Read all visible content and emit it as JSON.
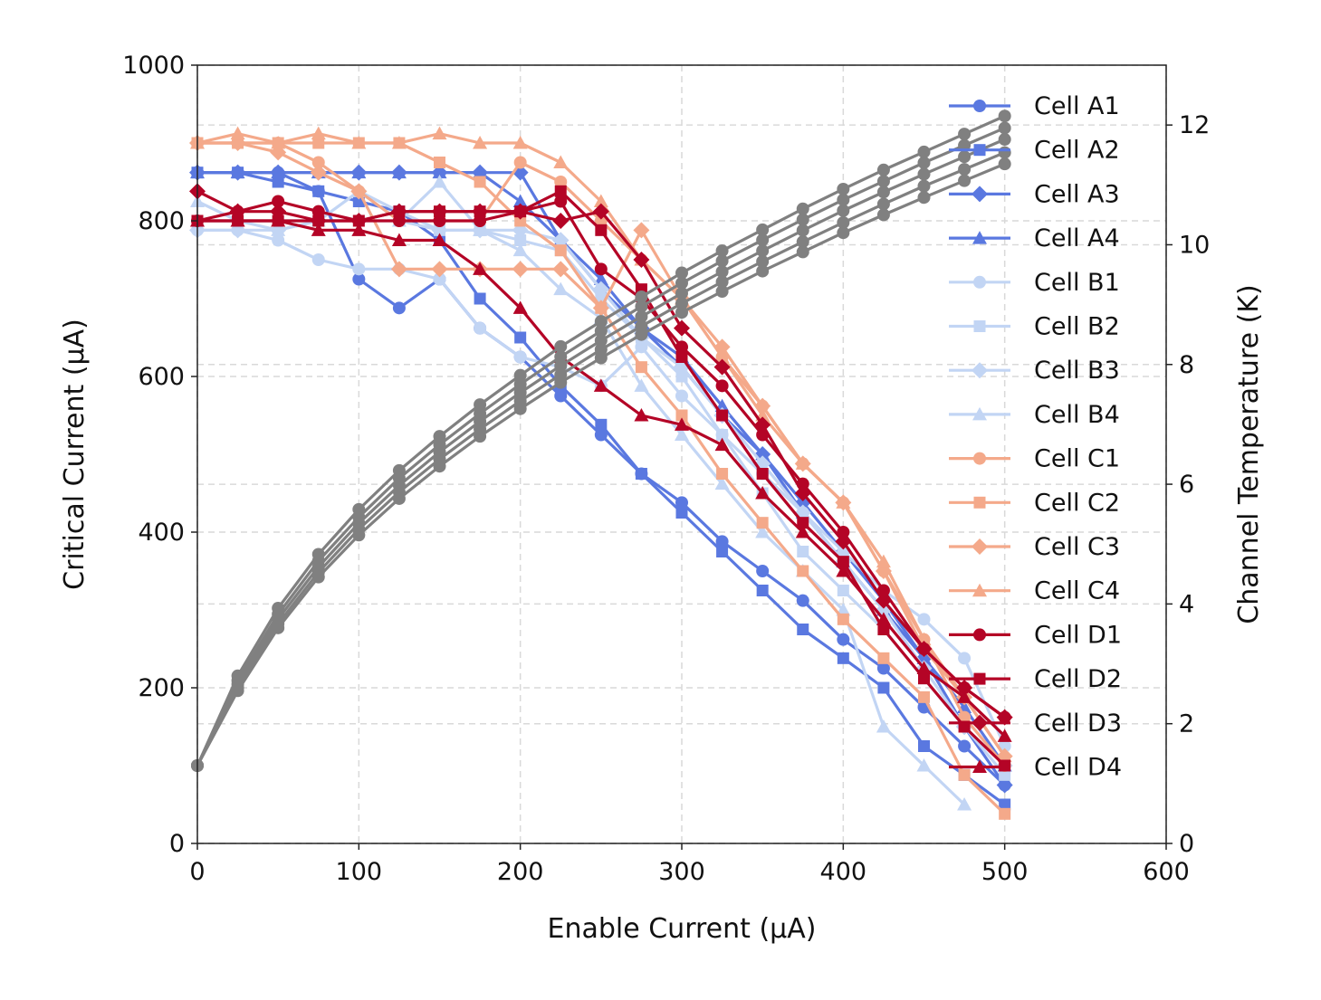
{
  "chart_data": {
    "type": "line",
    "xlabel": "Enable Current (μA)",
    "ylabel": "Critical Current (μA)",
    "y2label": "Channel Temperature (K)",
    "xlim": [
      0,
      600
    ],
    "ylim": [
      0,
      1000
    ],
    "y2lim": [
      0,
      13
    ],
    "xticks": [
      0,
      100,
      200,
      300,
      400,
      500,
      600
    ],
    "yticks": [
      0,
      200,
      400,
      600,
      800,
      1000
    ],
    "y2ticks": [
      0,
      2,
      4,
      6,
      8,
      10,
      12
    ],
    "grid": true,
    "legend_position": "right",
    "series": [
      {
        "name": "Cell A1",
        "color": "#5a78e0",
        "marker": "circle",
        "x": [
          0,
          25,
          50,
          75,
          100,
          125,
          150,
          175,
          200,
          225,
          250,
          275,
          300,
          325,
          350,
          375,
          400,
          425,
          450,
          475,
          500
        ],
        "y": [
          862,
          862,
          862,
          838,
          725,
          688,
          725,
          662,
          625,
          575,
          525,
          475,
          438,
          388,
          350,
          312,
          262,
          225,
          175,
          125,
          75
        ]
      },
      {
        "name": "Cell A2",
        "color": "#5a78e0",
        "marker": "square",
        "x": [
          0,
          25,
          50,
          75,
          100,
          125,
          150,
          175,
          200,
          225,
          250,
          275,
          300,
          325,
          350,
          375,
          400,
          425,
          450,
          475,
          500
        ],
        "y": [
          862,
          862,
          850,
          838,
          825,
          812,
          775,
          700,
          650,
          588,
          538,
          475,
          425,
          375,
          325,
          275,
          238,
          200,
          125,
          88,
          50
        ]
      },
      {
        "name": "Cell A3",
        "color": "#5a78e0",
        "marker": "diamond",
        "x": [
          0,
          25,
          50,
          75,
          100,
          125,
          150,
          175,
          200,
          225,
          250,
          275,
          300,
          325,
          350,
          375,
          400,
          425,
          450,
          475,
          500
        ],
        "y": [
          862,
          862,
          862,
          862,
          862,
          862,
          862,
          862,
          862,
          775,
          712,
          662,
          612,
          550,
          500,
          438,
          375,
          312,
          238,
          150,
          75
        ]
      },
      {
        "name": "Cell A4",
        "color": "#5a78e0",
        "marker": "triangle",
        "x": [
          0,
          25,
          50,
          75,
          100,
          125,
          150,
          175,
          200,
          225,
          250,
          275,
          300,
          325,
          350,
          375,
          400,
          425,
          450,
          475,
          500
        ],
        "y": [
          862,
          862,
          862,
          862,
          862,
          862,
          862,
          862,
          825,
          775,
          725,
          662,
          625,
          562,
          500,
          425,
          362,
          300,
          238,
          175,
          100
        ]
      },
      {
        "name": "Cell B1",
        "color": "#c2d5f4",
        "marker": "circle",
        "x": [
          0,
          25,
          50,
          75,
          100,
          125,
          150,
          175,
          200,
          225,
          250,
          275,
          300,
          325,
          350,
          375,
          400,
          425,
          450,
          475,
          500
        ],
        "y": [
          788,
          788,
          775,
          750,
          738,
          738,
          725,
          662,
          625,
          612,
          588,
          638,
          575,
          525,
          475,
          425,
          375,
          325,
          288,
          238,
          125
        ]
      },
      {
        "name": "Cell B2",
        "color": "#c2d5f4",
        "marker": "square",
        "x": [
          0,
          25,
          50,
          75,
          100,
          125,
          150,
          175,
          200,
          225,
          250,
          275,
          300,
          325,
          350,
          375,
          400,
          425,
          450,
          475,
          500
        ],
        "y": [
          800,
          800,
          800,
          800,
          800,
          800,
          788,
          788,
          775,
          762,
          700,
          650,
          600,
          525,
          450,
          375,
          325,
          275,
          212,
          150,
          88
        ]
      },
      {
        "name": "Cell B3",
        "color": "#c2d5f4",
        "marker": "diamond",
        "x": [
          0,
          25,
          50,
          75,
          100,
          125,
          150,
          175,
          200,
          225,
          250,
          275,
          300,
          325,
          350,
          375,
          400,
          425,
          450,
          475,
          500
        ],
        "y": [
          788,
          788,
          788,
          800,
          838,
          812,
          788,
          788,
          788,
          775,
          712,
          650,
          612,
          550,
          488,
          425,
          362,
          300,
          225,
          150,
          100
        ]
      },
      {
        "name": "Cell B4",
        "color": "#c2d5f4",
        "marker": "triangle",
        "x": [
          0,
          25,
          50,
          75,
          100,
          125,
          150,
          175,
          200,
          225,
          250,
          275,
          300,
          325,
          350,
          375,
          400,
          425,
          450,
          475,
          500
        ],
        "y": [
          825,
          800,
          788,
          800,
          838,
          800,
          850,
          788,
          762,
          712,
          675,
          588,
          525,
          462,
          400,
          350,
          300,
          150,
          100,
          50,
          null
        ]
      },
      {
        "name": "Cell C1",
        "color": "#f4a98a",
        "marker": "circle",
        "x": [
          0,
          25,
          50,
          75,
          100,
          125,
          150,
          175,
          200,
          225,
          250,
          275,
          300,
          325,
          350,
          375,
          400,
          425,
          450,
          475,
          500
        ],
        "y": [
          900,
          900,
          900,
          875,
          838,
          800,
          800,
          800,
          875,
          850,
          800,
          750,
          700,
          625,
          562,
          488,
          438,
          350,
          262,
          162,
          100
        ]
      },
      {
        "name": "Cell C2",
        "color": "#f4a98a",
        "marker": "square",
        "x": [
          0,
          25,
          50,
          75,
          100,
          125,
          150,
          175,
          200,
          225,
          250,
          275,
          300,
          325,
          350,
          375,
          400,
          425,
          450,
          475,
          500
        ],
        "y": [
          900,
          900,
          900,
          900,
          900,
          900,
          875,
          850,
          800,
          762,
          688,
          612,
          550,
          475,
          412,
          350,
          288,
          238,
          188,
          88,
          38
        ]
      },
      {
        "name": "Cell C3",
        "color": "#f4a98a",
        "marker": "diamond",
        "x": [
          0,
          25,
          50,
          75,
          100,
          125,
          150,
          175,
          200,
          225,
          250,
          275,
          300,
          325,
          350,
          375,
          400,
          425,
          450,
          475,
          500
        ],
        "y": [
          900,
          900,
          888,
          862,
          838,
          738,
          738,
          738,
          738,
          738,
          688,
          788,
          700,
          638,
          562,
          488,
          438,
          350,
          250,
          188,
          112
        ]
      },
      {
        "name": "Cell C4",
        "color": "#f4a98a",
        "marker": "triangle",
        "x": [
          0,
          25,
          50,
          75,
          100,
          125,
          150,
          175,
          200,
          225,
          250,
          275,
          300,
          325,
          350,
          375,
          400,
          425,
          450,
          475,
          500
        ],
        "y": [
          900,
          912,
          900,
          912,
          900,
          900,
          912,
          900,
          900,
          875,
          825,
          750,
          700,
          625,
          550,
          488,
          438,
          362,
          262,
          188,
          112
        ]
      },
      {
        "name": "Cell D1",
        "color": "#b40426",
        "marker": "circle",
        "x": [
          0,
          25,
          50,
          75,
          100,
          125,
          150,
          175,
          200,
          225,
          250,
          275,
          300,
          325,
          350,
          375,
          400,
          425,
          450,
          475,
          500
        ],
        "y": [
          800,
          812,
          825,
          812,
          800,
          800,
          800,
          800,
          812,
          825,
          738,
          700,
          638,
          588,
          525,
          462,
          400,
          325,
          250,
          200,
          162
        ]
      },
      {
        "name": "Cell D2",
        "color": "#b40426",
        "marker": "square",
        "x": [
          0,
          25,
          50,
          75,
          100,
          125,
          150,
          175,
          200,
          225,
          250,
          275,
          300,
          325,
          350,
          375,
          400,
          425,
          450,
          475,
          500
        ],
        "y": [
          800,
          800,
          800,
          800,
          800,
          812,
          812,
          812,
          812,
          838,
          788,
          712,
          625,
          550,
          475,
          412,
          362,
          275,
          212,
          150,
          100
        ]
      },
      {
        "name": "Cell D3",
        "color": "#b40426",
        "marker": "diamond",
        "x": [
          0,
          25,
          50,
          75,
          100,
          125,
          150,
          175,
          200,
          225,
          250,
          275,
          300,
          325,
          350,
          375,
          400,
          425,
          450,
          475,
          500
        ],
        "y": [
          838,
          812,
          812,
          800,
          800,
          812,
          812,
          812,
          812,
          800,
          812,
          750,
          662,
          612,
          538,
          450,
          388,
          312,
          250,
          200,
          162
        ]
      },
      {
        "name": "Cell D4",
        "color": "#b40426",
        "marker": "triangle",
        "x": [
          0,
          25,
          50,
          75,
          100,
          125,
          150,
          175,
          200,
          225,
          250,
          275,
          300,
          325,
          350,
          375,
          400,
          425,
          450,
          475,
          500
        ],
        "y": [
          800,
          800,
          800,
          788,
          788,
          775,
          775,
          738,
          688,
          625,
          588,
          550,
          538,
          512,
          450,
          400,
          350,
          288,
          225,
          188,
          138
        ]
      }
    ],
    "temperature_series": [
      {
        "color": "#808080",
        "axis": "right",
        "x": [
          0,
          25,
          50,
          75,
          100,
          125,
          150,
          175,
          200,
          225,
          250,
          275,
          300,
          325,
          350,
          375,
          400,
          425,
          450,
          475,
          500
        ],
        "y": [
          1.3,
          2.8,
          3.93,
          4.83,
          5.58,
          6.23,
          6.8,
          7.33,
          7.82,
          8.3,
          8.72,
          9.13,
          9.53,
          9.9,
          10.25,
          10.6,
          10.93,
          11.25,
          11.55,
          11.85,
          12.15
        ]
      },
      {
        "color": "#808080",
        "axis": "right",
        "x": [
          0,
          25,
          50,
          75,
          100,
          125,
          150,
          175,
          200,
          225,
          250,
          275,
          300,
          325,
          350,
          375,
          400,
          425,
          450,
          475,
          500
        ],
        "y": [
          1.3,
          2.72,
          3.83,
          4.72,
          5.45,
          6.1,
          6.66,
          7.18,
          7.67,
          8.13,
          8.56,
          8.97,
          9.36,
          9.73,
          10.08,
          10.42,
          10.75,
          11.06,
          11.37,
          11.66,
          11.95
        ]
      },
      {
        "color": "#808080",
        "axis": "right",
        "x": [
          0,
          25,
          50,
          75,
          100,
          125,
          150,
          175,
          200,
          225,
          250,
          275,
          300,
          325,
          350,
          375,
          400,
          425,
          450,
          475,
          500
        ],
        "y": [
          1.3,
          2.66,
          3.75,
          4.62,
          5.35,
          5.98,
          6.54,
          7.05,
          7.53,
          7.98,
          8.4,
          8.8,
          9.19,
          9.55,
          9.9,
          10.24,
          10.57,
          10.88,
          11.18,
          11.47,
          11.76
        ]
      },
      {
        "color": "#808080",
        "axis": "right",
        "x": [
          0,
          25,
          50,
          75,
          100,
          125,
          150,
          175,
          200,
          225,
          250,
          275,
          300,
          325,
          350,
          375,
          400,
          425,
          450,
          475,
          500
        ],
        "y": [
          1.3,
          2.6,
          3.67,
          4.53,
          5.25,
          5.87,
          6.42,
          6.92,
          7.39,
          7.83,
          8.25,
          8.64,
          9.02,
          9.38,
          9.72,
          10.05,
          10.37,
          10.68,
          10.98,
          11.26,
          11.54
        ]
      },
      {
        "color": "#808080",
        "axis": "right",
        "x": [
          0,
          25,
          50,
          75,
          100,
          125,
          150,
          175,
          200,
          225,
          250,
          275,
          300,
          325,
          350,
          375,
          400,
          425,
          450,
          475,
          500
        ],
        "y": [
          1.3,
          2.55,
          3.6,
          4.45,
          5.15,
          5.76,
          6.3,
          6.8,
          7.26,
          7.7,
          8.11,
          8.5,
          8.87,
          9.22,
          9.56,
          9.88,
          10.2,
          10.5,
          10.79,
          11.07,
          11.35
        ]
      }
    ]
  }
}
